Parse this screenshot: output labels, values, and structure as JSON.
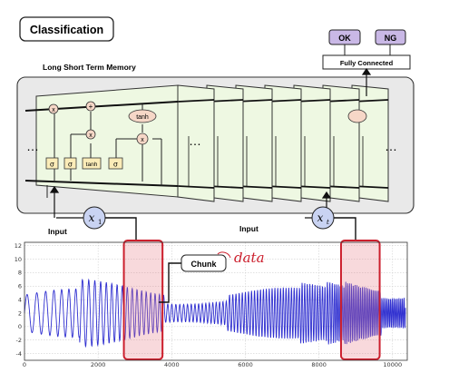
{
  "title": "Classification",
  "subtitle": "Long Short Term Memory",
  "outputs": [
    {
      "label": "OK",
      "color": "#c9b8e6"
    },
    {
      "label": "NG",
      "color": "#c9b8e6"
    }
  ],
  "fully_connected": "Fully Connected",
  "lstm_cell": {
    "gate_x1": "x",
    "gate_plus": "+",
    "gate_x2": "x",
    "gate_x3": "x",
    "tanh_top": "tanh",
    "activations": [
      "σ",
      "σ",
      "tanh",
      "σ"
    ]
  },
  "ellipsis_left": "…",
  "ellipsis_mid": "…",
  "ellipsis_right": "…",
  "input_label_left": "Input",
  "input_label_right": "Input",
  "x_left": {
    "base": "x",
    "sub": "1"
  },
  "x_right": {
    "base": "x",
    "sub": "t"
  },
  "chunk_label": "Chunk",
  "handwritten_note": "data",
  "colors": {
    "cell_fill": "#eef8e2",
    "panel_fill": "#e8e8e8",
    "highlight": "#cc1f2d",
    "signal": "#2f2fd0",
    "circle_fill": "#c9d3f2",
    "gate_fill": "#fbecb8",
    "op_fill": "#f6d7c7"
  },
  "chart_data": {
    "type": "line",
    "x_ticks": [
      0,
      2000,
      4000,
      6000,
      8000,
      10000
    ],
    "y_ticks": [
      -4,
      -2,
      0,
      2,
      4,
      6,
      8,
      10,
      12
    ],
    "xlim": [
      0,
      10400
    ],
    "ylim": [
      -5,
      12.5
    ],
    "grid": true,
    "chunks": [
      {
        "x_start": 2700,
        "x_end": 3750
      },
      {
        "x_start": 8600,
        "x_end": 9650
      }
    ]
  }
}
